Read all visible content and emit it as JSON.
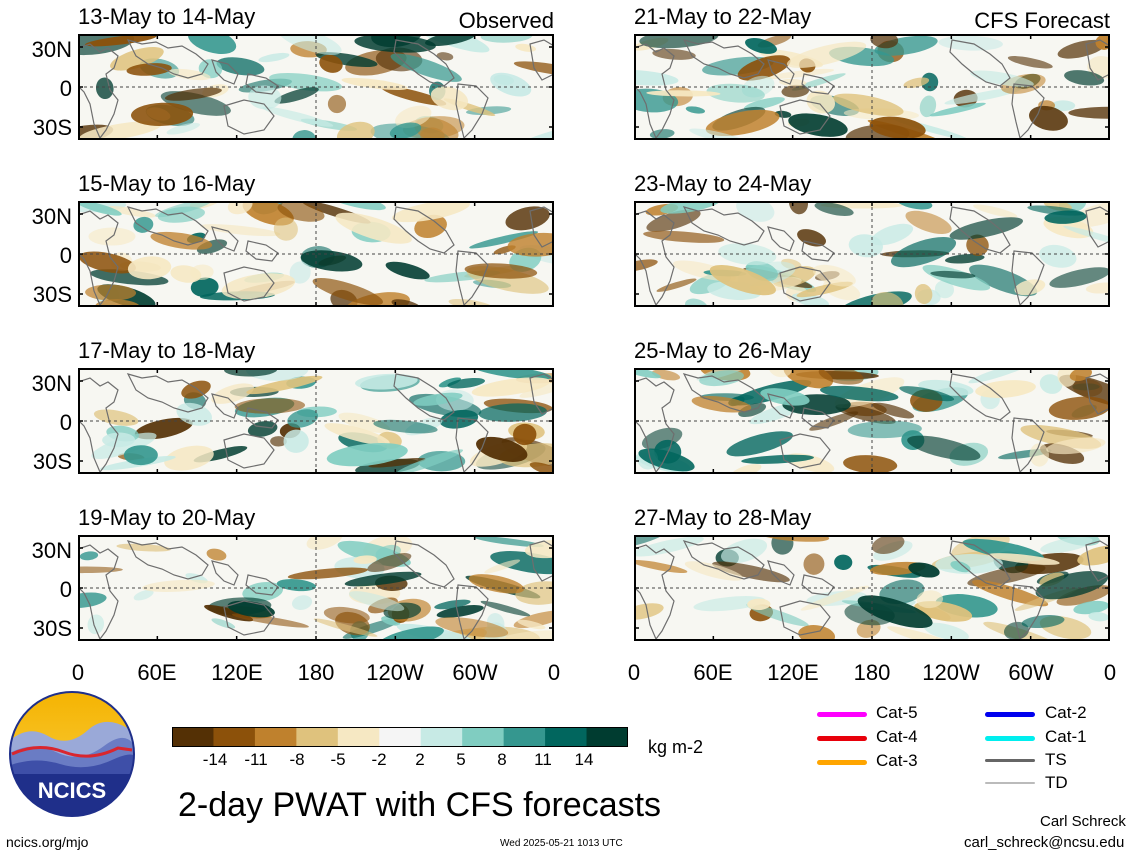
{
  "header": {
    "left_tag": "Observed",
    "right_tag": "CFS Forecast"
  },
  "panels_left": [
    {
      "title": "13-May to 14-May"
    },
    {
      "title": "15-May to 16-May"
    },
    {
      "title": "17-May to 18-May"
    },
    {
      "title": "19-May to 20-May"
    }
  ],
  "panels_right": [
    {
      "title": "21-May to 22-May"
    },
    {
      "title": "23-May to 24-May"
    },
    {
      "title": "25-May to 26-May"
    },
    {
      "title": "27-May to 28-May"
    }
  ],
  "y_axis": [
    "30N",
    "0",
    "30S"
  ],
  "x_axis": [
    "0",
    "60E",
    "120E",
    "180",
    "120W",
    "60W",
    "0"
  ],
  "colorbar": {
    "labels": [
      "-14",
      "-11",
      "-8",
      "-5",
      "-2",
      "2",
      "5",
      "8",
      "11",
      "14"
    ],
    "colors": [
      "#543005",
      "#8c510a",
      "#bf812d",
      "#dfc27d",
      "#f6e8c3",
      "#f5f5f5",
      "#c7eae5",
      "#80cdc1",
      "#35978f",
      "#01665e",
      "#003c30"
    ],
    "units": "kg m-2"
  },
  "legend": [
    {
      "label": "Cat-5",
      "color": "#ff00ff"
    },
    {
      "label": "Cat-4",
      "color": "#e8000b"
    },
    {
      "label": "Cat-3",
      "color": "#ffa500"
    },
    {
      "label": "Cat-2",
      "color": "#0000ee"
    },
    {
      "label": "Cat-1",
      "color": "#00eeee"
    },
    {
      "label": "TS",
      "color": "#666666"
    },
    {
      "label": "TD",
      "color": "#bbbbbb"
    }
  ],
  "logo": {
    "text": "NCICS"
  },
  "title": "2-day PWAT with CFS forecasts",
  "footer": {
    "url": "ncics.org/mjo",
    "timestamp": "Wed 2025-05-21 1013 UTC",
    "author": "Carl Schreck",
    "email": "carl_schreck@ncsu.edu"
  }
}
